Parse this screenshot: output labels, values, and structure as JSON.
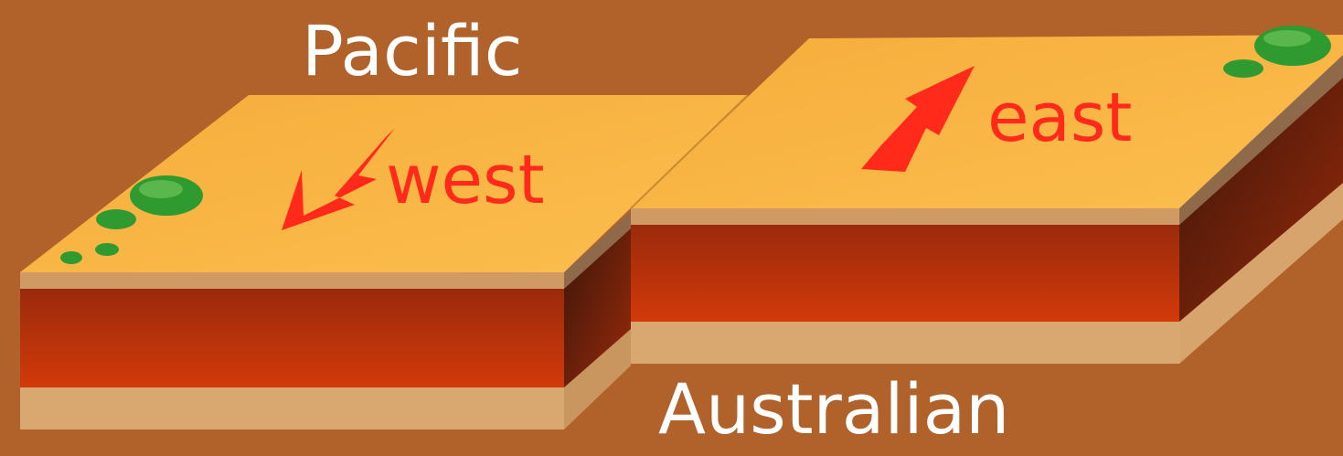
{
  "plates": {
    "top_label": "Pacific",
    "bottom_label": "Australian"
  },
  "motion": {
    "left_direction": "west",
    "right_direction": "east"
  },
  "colors": {
    "background": "#b0622a",
    "plate_surface": "#f9b23f",
    "crust_layer": "#c63a10",
    "mantle_layer": "#d9a76c",
    "arrow": "#ff2a1a",
    "vegetation": "#2f9a2f"
  }
}
